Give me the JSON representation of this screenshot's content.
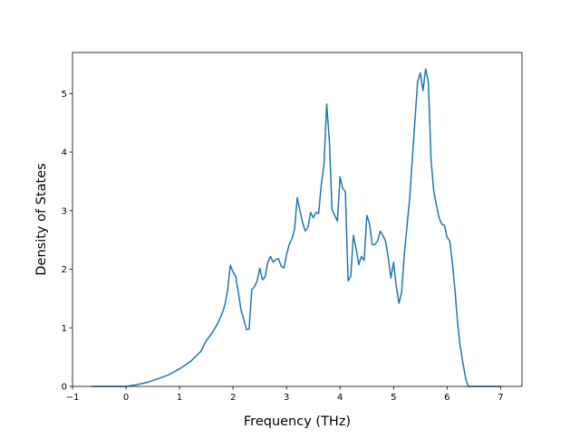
{
  "chart_data": {
    "type": "line",
    "title": "",
    "xlabel": "Frequency (THz)",
    "ylabel": "Density of States",
    "xlim": [
      -1.0,
      7.4
    ],
    "ylim": [
      0,
      5.7
    ],
    "grid": false,
    "legend": "none",
    "xticks": [
      -1,
      0,
      1,
      2,
      3,
      4,
      5,
      6,
      7
    ],
    "yticks": [
      0,
      1,
      2,
      3,
      4,
      5
    ],
    "xtick_labels": [
      "−1",
      "0",
      "1",
      "2",
      "3",
      "4",
      "5",
      "6",
      "7"
    ],
    "ytick_labels": [
      "0",
      "1",
      "2",
      "3",
      "4",
      "5"
    ],
    "series": [
      {
        "name": "",
        "color": "#1f77b4",
        "x": [
          -0.65,
          0.0,
          0.2,
          0.4,
          0.6,
          0.8,
          1.0,
          1.2,
          1.4,
          1.5,
          1.6,
          1.7,
          1.8,
          1.85,
          1.9,
          1.95,
          2.0,
          2.05,
          2.1,
          2.15,
          2.2,
          2.25,
          2.3,
          2.35,
          2.4,
          2.45,
          2.5,
          2.55,
          2.6,
          2.65,
          2.7,
          2.75,
          2.8,
          2.85,
          2.9,
          2.95,
          3.0,
          3.05,
          3.1,
          3.15,
          3.2,
          3.25,
          3.3,
          3.35,
          3.4,
          3.45,
          3.5,
          3.55,
          3.6,
          3.65,
          3.7,
          3.75,
          3.8,
          3.85,
          3.9,
          3.95,
          4.0,
          4.05,
          4.1,
          4.15,
          4.2,
          4.25,
          4.3,
          4.35,
          4.4,
          4.45,
          4.5,
          4.55,
          4.6,
          4.65,
          4.7,
          4.75,
          4.8,
          4.85,
          4.9,
          4.95,
          5.0,
          5.05,
          5.1,
          5.15,
          5.2,
          5.25,
          5.3,
          5.35,
          5.4,
          5.45,
          5.5,
          5.55,
          5.6,
          5.65,
          5.7,
          5.75,
          5.8,
          5.85,
          5.9,
          5.95,
          6.0,
          6.05,
          6.1,
          6.15,
          6.2,
          6.25,
          6.3,
          6.35,
          6.4,
          6.5,
          7.0
        ],
        "y": [
          0.0,
          0.0,
          0.03,
          0.07,
          0.13,
          0.2,
          0.3,
          0.42,
          0.6,
          0.78,
          0.9,
          1.05,
          1.25,
          1.4,
          1.65,
          2.07,
          1.95,
          1.88,
          1.6,
          1.3,
          1.15,
          0.97,
          0.98,
          1.65,
          1.7,
          1.8,
          2.02,
          1.82,
          1.87,
          2.12,
          2.22,
          2.12,
          2.17,
          2.18,
          2.05,
          2.02,
          2.25,
          2.42,
          2.52,
          2.68,
          3.22,
          3.0,
          2.8,
          2.65,
          2.72,
          2.97,
          2.88,
          2.97,
          2.95,
          3.45,
          3.8,
          4.82,
          4.2,
          3.02,
          2.92,
          2.82,
          3.58,
          3.38,
          3.32,
          1.8,
          1.88,
          2.58,
          2.35,
          2.08,
          2.22,
          2.15,
          2.92,
          2.78,
          2.42,
          2.42,
          2.48,
          2.65,
          2.58,
          2.48,
          2.2,
          1.85,
          2.12,
          1.72,
          1.42,
          1.6,
          2.25,
          2.72,
          3.2,
          3.88,
          4.55,
          5.2,
          5.35,
          5.05,
          5.42,
          5.2,
          3.88,
          3.35,
          3.1,
          2.88,
          2.77,
          2.75,
          2.55,
          2.48,
          2.1,
          1.62,
          1.05,
          0.65,
          0.38,
          0.12,
          0.0,
          0.0,
          0.0
        ]
      }
    ]
  }
}
